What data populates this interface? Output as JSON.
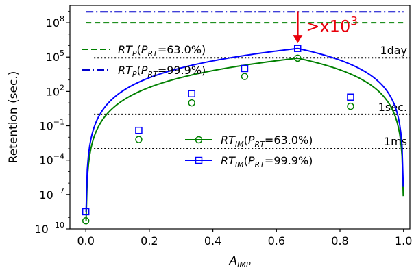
{
  "chart_data": {
    "type": "line",
    "xlabel": "A_IMP",
    "ylabel": "Retention (sec.)",
    "xlim": [
      -0.05,
      1.02
    ],
    "ylim_log10": [
      -10,
      9.5
    ],
    "y_scale": "log",
    "grid": false,
    "x_ticks": [
      {
        "value": 0.0,
        "label": "0.0"
      },
      {
        "value": 0.2,
        "label": "0.2"
      },
      {
        "value": 0.4,
        "label": "0.4"
      },
      {
        "value": 0.6,
        "label": "0.6"
      },
      {
        "value": 0.8,
        "label": "0.8"
      },
      {
        "value": 1.0,
        "label": "1.0"
      }
    ],
    "y_ticks": [
      {
        "exp": -10,
        "base": "10",
        "power": "−10"
      },
      {
        "exp": -7,
        "base": "10",
        "power": "−7"
      },
      {
        "exp": -4,
        "base": "10",
        "power": "−4"
      },
      {
        "exp": -1,
        "base": "10",
        "power": "−1"
      },
      {
        "exp": 2,
        "base": "10",
        "power": "2"
      },
      {
        "exp": 5,
        "base": "10",
        "power": "5"
      },
      {
        "exp": 8,
        "base": "10",
        "power": "8"
      }
    ],
    "series": [
      {
        "key": "rtp_63",
        "name": "RT_P(P_RT=63.0%)",
        "color": "#008000",
        "style": "dashed",
        "log10_value": 8.0
      },
      {
        "key": "rtp_999",
        "name": "RT_P(P_RT=99.9%)",
        "color": "#0000cc",
        "style": "dashdot",
        "log10_value": 8.95
      },
      {
        "key": "rtim_63",
        "name": "RT_IM(P_RT=63.0%)",
        "color": "#008000",
        "style": "solid",
        "marker": "circle",
        "peak_x": 0.667,
        "peak_log10": 4.9,
        "floor_log10": -9.35,
        "markers": [
          {
            "x": 0.0,
            "log10_y": -9.3
          },
          {
            "x": 0.1667,
            "log10_y": -2.2
          },
          {
            "x": 0.3333,
            "log10_y": 1.0
          },
          {
            "x": 0.5,
            "log10_y": 3.3
          },
          {
            "x": 0.6667,
            "log10_y": 4.9
          },
          {
            "x": 0.8333,
            "log10_y": 0.7
          }
        ]
      },
      {
        "key": "rtim_999",
        "name": "RT_IM(P_RT=99.9%)",
        "color": "#0000ff",
        "style": "solid",
        "marker": "square",
        "peak_x": 0.667,
        "peak_log10": 5.75,
        "floor_log10": -8.55,
        "markers": [
          {
            "x": 0.0,
            "log10_y": -8.5
          },
          {
            "x": 0.1667,
            "log10_y": -1.4
          },
          {
            "x": 0.3333,
            "log10_y": 1.8
          },
          {
            "x": 0.5,
            "log10_y": 4.0
          },
          {
            "x": 0.6667,
            "log10_y": 5.75
          },
          {
            "x": 0.8333,
            "log10_y": 1.5
          }
        ]
      }
    ],
    "reference_lines": [
      {
        "label": "1day",
        "log10_value": 4.94
      },
      {
        "label": "1sec.",
        "log10_value": 0.0
      },
      {
        "label": "1ms",
        "log10_value": -3.0
      }
    ],
    "annotation": {
      "text_base": ">x10",
      "text_power": "3",
      "x": 0.667,
      "arrow_from_log10": 9.0,
      "arrow_to_log10": 6.2,
      "color": "#e8000b"
    }
  }
}
